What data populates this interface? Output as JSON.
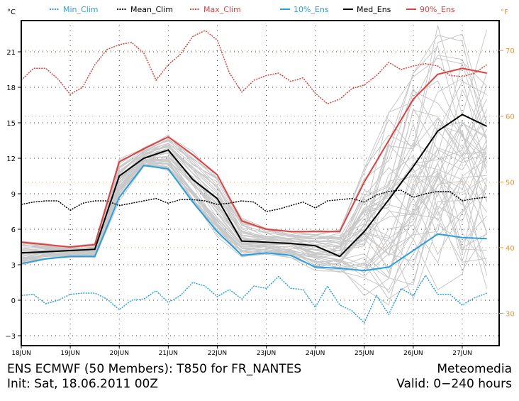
{
  "chart_data": {
    "type": "line",
    "title": "ENS ECMWF (50 Members): T850 for FR_NANTES",
    "subtitle": "Init: Sat, 18.06.2011 00Z",
    "source": "Meteomedia",
    "valid": "Valid: 0-240 hours",
    "ylabel_left": "°C",
    "ylabel_right": "°F",
    "ylim": [
      -4.0,
      23.5
    ],
    "yticks_left": [
      -3,
      0,
      3,
      6,
      9,
      12,
      15,
      18,
      21
    ],
    "yticks_right": [
      30,
      40,
      50,
      60,
      70
    ],
    "xlim_hours": [
      0,
      234
    ],
    "xticks": [
      {
        "label": "18JUN",
        "hour": 0
      },
      {
        "label": "19JUN",
        "hour": 24
      },
      {
        "label": "20JUN",
        "hour": 48
      },
      {
        "label": "21JUN",
        "hour": 72
      },
      {
        "label": "22JUN",
        "hour": 96
      },
      {
        "label": "23JUN",
        "hour": 120
      },
      {
        "label": "24JUN",
        "hour": 144
      },
      {
        "label": "25JUN",
        "hour": 168
      },
      {
        "label": "26JUN",
        "hour": 192
      },
      {
        "label": "27JUN",
        "hour": 216
      }
    ],
    "grid": true,
    "legend_position": "top",
    "legend": [
      {
        "key": "min_clim",
        "label": "Min_Clim",
        "color": "#2a9fdf",
        "style": "dashed"
      },
      {
        "key": "mean_clim",
        "label": "Mean_Clim",
        "color": "#000000",
        "style": "dashed"
      },
      {
        "key": "max_clim",
        "label": "Max_Clim",
        "color": "#e04040",
        "style": "dashed"
      },
      {
        "key": "p10",
        "label": "10%_Ens",
        "color": "#2a9fdf",
        "style": "solid"
      },
      {
        "key": "median",
        "label": "Med_Ens",
        "color": "#000000",
        "style": "solid"
      },
      {
        "key": "p90",
        "label": "90%_Ens",
        "color": "#e04040",
        "style": "solid"
      }
    ],
    "clim_hours_step": 6,
    "ens_hours_step": 12,
    "series": [
      {
        "key": "min_clim",
        "name": "Min_Clim",
        "values": [
          0.4,
          0.5,
          -0.3,
          0.0,
          0.5,
          0.6,
          0.6,
          0.1,
          -0.8,
          0.0,
          0.1,
          0.8,
          -0.2,
          0.4,
          1.5,
          1.2,
          0.3,
          0.9,
          0.1,
          1.2,
          1.0,
          2.0,
          1.0,
          0.9,
          -0.6,
          1.2,
          -0.4,
          -0.9,
          -1.9,
          0.4,
          -1.2,
          1.0,
          0.4,
          2.1,
          0.5,
          0.5,
          -0.4,
          0.2,
          0.6
        ]
      },
      {
        "key": "mean_clim",
        "name": "Mean_Clim",
        "values": [
          8.1,
          8.3,
          8.4,
          8.4,
          7.6,
          8.2,
          8.4,
          8.4,
          8.0,
          8.2,
          8.4,
          8.6,
          8.2,
          8.5,
          8.5,
          8.4,
          8.1,
          8.2,
          8.4,
          8.3,
          7.5,
          7.7,
          8.0,
          8.3,
          7.8,
          8.4,
          8.5,
          8.6,
          8.3,
          8.9,
          9.2,
          9.3,
          8.7,
          9.0,
          9.2,
          9.2,
          8.4,
          8.6,
          8.7
        ]
      },
      {
        "key": "max_clim",
        "name": "Max_Clim",
        "values": [
          18.6,
          19.6,
          19.6,
          18.7,
          17.4,
          18.0,
          19.9,
          21.2,
          21.6,
          21.8,
          20.9,
          18.6,
          19.9,
          20.8,
          22.3,
          22.8,
          22.0,
          19.2,
          17.6,
          18.6,
          19.0,
          19.2,
          18.5,
          18.8,
          17.5,
          16.6,
          17.0,
          17.9,
          18.2,
          19.0,
          20.1,
          19.5,
          19.8,
          20.0,
          19.8,
          19.0,
          18.9,
          19.2,
          19.9
        ]
      },
      {
        "key": "p10",
        "name": "10%_Ens",
        "values": [
          3.1,
          3.5,
          3.7,
          3.7,
          8.7,
          11.4,
          11.1,
          8.3,
          5.8,
          3.8,
          4.0,
          3.8,
          2.8,
          2.7,
          2.5,
          2.8,
          4.2,
          5.6,
          5.3,
          5.2
        ]
      },
      {
        "key": "median",
        "name": "Med_Ens",
        "values": [
          4.0,
          4.1,
          4.2,
          4.3,
          10.5,
          12.0,
          12.7,
          10.2,
          8.6,
          5.0,
          4.9,
          4.8,
          4.6,
          3.7,
          5.8,
          8.5,
          11.3,
          14.3,
          15.7,
          14.7
        ]
      },
      {
        "key": "p90",
        "name": "90%_Ens",
        "values": [
          4.9,
          4.7,
          4.5,
          4.7,
          11.7,
          12.8,
          13.8,
          12.3,
          10.6,
          6.7,
          6.0,
          5.8,
          5.8,
          5.8,
          10.0,
          13.5,
          17.0,
          19.1,
          19.6,
          19.2
        ]
      }
    ],
    "ensemble_members": 50,
    "ensemble_color": "#c8c8c8"
  },
  "footer": {
    "left_line1": "ENS ECMWF (50 Members): T850 for FR_NANTES",
    "left_line2": "Init: Sat, 18.06.2011 00Z",
    "right_line1": "Meteomedia",
    "right_line2": "Valid: 0−240 hours"
  }
}
